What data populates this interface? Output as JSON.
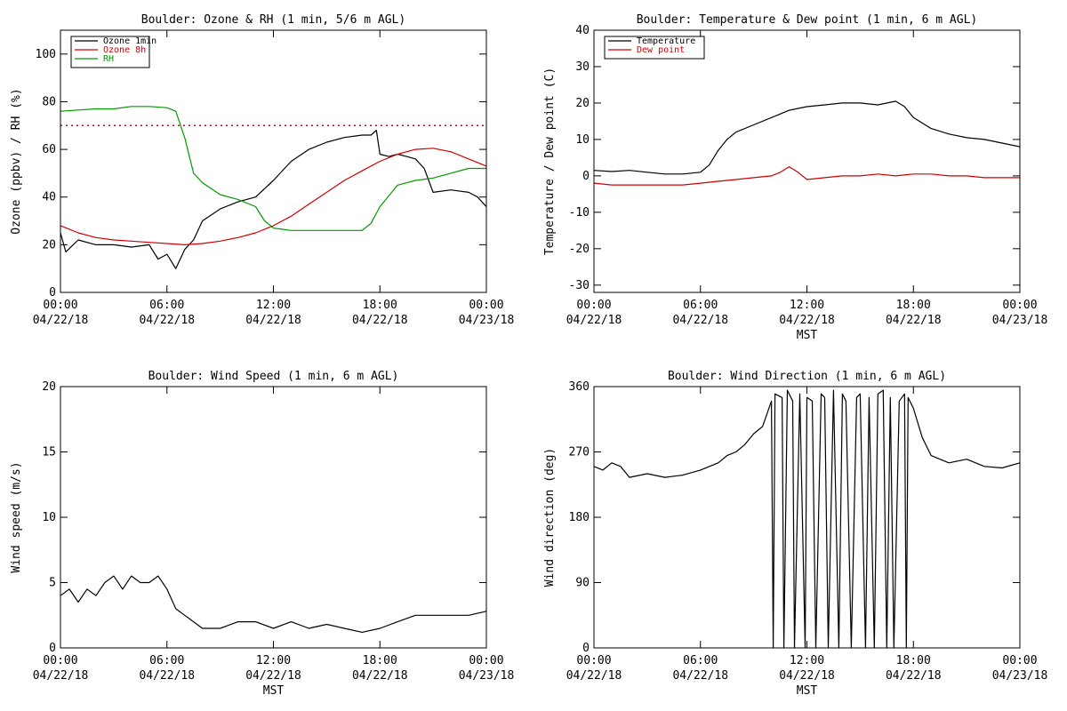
{
  "chart_data": [
    {
      "id": "ozone_rh",
      "type": "line",
      "title": "Boulder: Ozone & RH (1 min, 5/6 m AGL)",
      "xlabel": "",
      "ylabel": "Ozone (ppbv) / RH (%)",
      "xlim": [
        0,
        24
      ],
      "ylim": [
        0,
        110
      ],
      "yticks": [
        0,
        20,
        40,
        60,
        80,
        100
      ],
      "xticks": [
        {
          "time": "00:00",
          "date": "04/22/18"
        },
        {
          "time": "06:00",
          "date": "04/22/18"
        },
        {
          "time": "12:00",
          "date": "04/22/18"
        },
        {
          "time": "18:00",
          "date": "04/22/18"
        },
        {
          "time": "00:00",
          "date": "04/23/18"
        }
      ],
      "legend_position": "top-left",
      "reference_line": {
        "y": 70,
        "color": "#d00000",
        "style": "dotted"
      },
      "series": [
        {
          "name": "Ozone 1min",
          "color": "#000000",
          "x": [
            0,
            0.3,
            1,
            2,
            3,
            4,
            5,
            5.5,
            6,
            6.5,
            7,
            7.5,
            8,
            9,
            10,
            11,
            12,
            13,
            14,
            15,
            16,
            17,
            17.5,
            17.8,
            18,
            18.5,
            19,
            19.5,
            20,
            20.5,
            21,
            22,
            23,
            23.5,
            24
          ],
          "y": [
            25,
            17,
            22,
            20,
            20,
            19,
            20,
            14,
            16,
            10,
            18,
            22,
            30,
            35,
            38,
            40,
            47,
            55,
            60,
            63,
            65,
            66,
            66,
            68,
            58,
            57,
            58,
            57,
            56,
            52,
            42,
            43,
            42,
            40,
            36
          ]
        },
        {
          "name": "Ozone 8h",
          "color": "#d00000",
          "x": [
            0,
            1,
            2,
            3,
            4,
            5,
            6,
            7,
            8,
            9,
            10,
            11,
            12,
            13,
            14,
            15,
            16,
            17,
            18,
            19,
            20,
            21,
            22,
            23,
            24
          ],
          "y": [
            28,
            25,
            23,
            22,
            21.5,
            21,
            20.5,
            20,
            20.5,
            21.5,
            23,
            25,
            28,
            32,
            37,
            42,
            47,
            51,
            55,
            58,
            60,
            60.5,
            59,
            56,
            53
          ]
        },
        {
          "name": "RH",
          "color": "#009900",
          "x": [
            0,
            1,
            2,
            3,
            4,
            5,
            6,
            6.5,
            7,
            7.5,
            8,
            9,
            10,
            11,
            11.5,
            12,
            13,
            14,
            15,
            16,
            17,
            17.5,
            18,
            19,
            20,
            21,
            22,
            23,
            24
          ],
          "y": [
            76,
            76.5,
            77,
            77,
            78,
            78,
            77.5,
            76,
            65,
            50,
            46,
            41,
            39,
            36,
            30,
            27,
            26,
            26,
            26,
            26,
            26,
            29,
            36,
            45,
            47,
            48,
            50,
            52,
            52
          ]
        }
      ]
    },
    {
      "id": "temp_dew",
      "type": "line",
      "title": "Boulder: Temperature & Dew point (1 min, 6 m AGL)",
      "xlabel": "MST",
      "ylabel": "Temperature / Dew point (C)",
      "xlim": [
        0,
        24
      ],
      "ylim": [
        -32,
        40
      ],
      "yticks": [
        -30,
        -20,
        -10,
        0,
        10,
        20,
        30,
        40
      ],
      "xticks": [
        {
          "time": "00:00",
          "date": "04/22/18"
        },
        {
          "time": "06:00",
          "date": "04/22/18"
        },
        {
          "time": "12:00",
          "date": "04/22/18"
        },
        {
          "time": "18:00",
          "date": "04/22/18"
        },
        {
          "time": "00:00",
          "date": "04/23/18"
        }
      ],
      "legend_position": "top-left",
      "series": [
        {
          "name": "Temperature",
          "color": "#000000",
          "x": [
            0,
            1,
            2,
            3,
            4,
            5,
            6,
            6.5,
            7,
            7.5,
            8,
            9,
            10,
            11,
            12,
            13,
            14,
            15,
            16,
            17,
            17.5,
            18,
            19,
            20,
            21,
            22,
            23,
            24
          ],
          "y": [
            1.5,
            1.2,
            1.5,
            1,
            0.5,
            0.5,
            1,
            3,
            7,
            10,
            12,
            14,
            16,
            18,
            19,
            19.5,
            20,
            20,
            19.5,
            20.5,
            19,
            16,
            13,
            11.5,
            10.5,
            10,
            9,
            8
          ]
        },
        {
          "name": "Dew point",
          "color": "#d00000",
          "x": [
            0,
            1,
            2,
            3,
            4,
            5,
            6,
            7,
            8,
            9,
            10,
            10.5,
            11,
            11.5,
            12,
            13,
            14,
            15,
            16,
            17,
            18,
            19,
            20,
            21,
            22,
            23,
            24
          ],
          "y": [
            -2,
            -2.5,
            -2.5,
            -2.5,
            -2.5,
            -2.5,
            -2,
            -1.5,
            -1,
            -0.5,
            0,
            1,
            2.5,
            1,
            -1,
            -0.5,
            0,
            0,
            0.5,
            0,
            0.5,
            0.5,
            0,
            0,
            -0.5,
            -0.5,
            -0.5
          ]
        }
      ]
    },
    {
      "id": "wind_speed",
      "type": "line",
      "title": "Boulder: Wind Speed (1 min, 6 m AGL)",
      "xlabel": "MST",
      "ylabel": "Wind speed (m/s)",
      "xlim": [
        0,
        24
      ],
      "ylim": [
        0,
        20
      ],
      "yticks": [
        0,
        5,
        10,
        15,
        20
      ],
      "xticks": [
        {
          "time": "00:00",
          "date": "04/22/18"
        },
        {
          "time": "06:00",
          "date": "04/22/18"
        },
        {
          "time": "12:00",
          "date": "04/22/18"
        },
        {
          "time": "18:00",
          "date": "04/22/18"
        },
        {
          "time": "00:00",
          "date": "04/23/18"
        }
      ],
      "series": [
        {
          "name": "",
          "color": "#000000",
          "x": [
            0,
            0.5,
            1,
            1.5,
            2,
            2.5,
            3,
            3.5,
            4,
            4.5,
            5,
            5.5,
            6,
            6.5,
            7,
            7.5,
            8,
            9,
            10,
            11,
            12,
            13,
            14,
            15,
            16,
            17,
            18,
            19,
            20,
            21,
            22,
            23,
            24
          ],
          "y": [
            4,
            4.5,
            3.5,
            4.5,
            4,
            5,
            5.5,
            4.5,
            5.5,
            5,
            5,
            5.5,
            4.5,
            3,
            2.5,
            2,
            1.5,
            1.5,
            2,
            2,
            1.5,
            2,
            1.5,
            1.8,
            1.5,
            1.2,
            1.5,
            2,
            2.5,
            2.5,
            2.5,
            2.5,
            2.8
          ]
        }
      ]
    },
    {
      "id": "wind_dir",
      "type": "line",
      "title": "Boulder: Wind Direction (1 min, 6 m AGL)",
      "xlabel": "MST",
      "ylabel": "Wind direction (deg)",
      "xlim": [
        0,
        24
      ],
      "ylim": [
        0,
        360
      ],
      "yticks": [
        0,
        90,
        180,
        270,
        360
      ],
      "xticks": [
        {
          "time": "00:00",
          "date": "04/22/18"
        },
        {
          "time": "06:00",
          "date": "04/22/18"
        },
        {
          "time": "12:00",
          "date": "04/22/18"
        },
        {
          "time": "18:00",
          "date": "04/22/18"
        },
        {
          "time": "00:00",
          "date": "04/23/18"
        }
      ],
      "series": [
        {
          "name": "",
          "color": "#000000",
          "x": [
            0,
            0.5,
            1,
            1.5,
            2,
            3,
            4,
            5,
            6,
            7,
            7.5,
            8,
            8.5,
            9,
            9.5,
            10,
            10.1,
            10.2,
            10.6,
            10.7,
            10.9,
            11.2,
            11.3,
            11.6,
            11.9,
            12.0,
            12.3,
            12.5,
            12.8,
            13.0,
            13.2,
            13.5,
            13.8,
            14.0,
            14.2,
            14.5,
            14.8,
            15.0,
            15.3,
            15.5,
            15.8,
            16.0,
            16.3,
            16.5,
            16.7,
            16.9,
            17.2,
            17.5,
            17.6,
            17.7,
            18.0,
            18.5,
            19,
            20,
            21,
            22,
            23,
            24
          ],
          "y": [
            250,
            245,
            255,
            250,
            235,
            240,
            235,
            238,
            245,
            255,
            265,
            270,
            280,
            295,
            305,
            340,
            0,
            350,
            345,
            0,
            355,
            340,
            0,
            350,
            0,
            345,
            340,
            0,
            350,
            345,
            0,
            355,
            0,
            350,
            340,
            0,
            345,
            350,
            0,
            345,
            0,
            350,
            355,
            0,
            345,
            0,
            340,
            350,
            0,
            345,
            330,
            290,
            265,
            255,
            260,
            250,
            248,
            255
          ]
        }
      ]
    }
  ]
}
